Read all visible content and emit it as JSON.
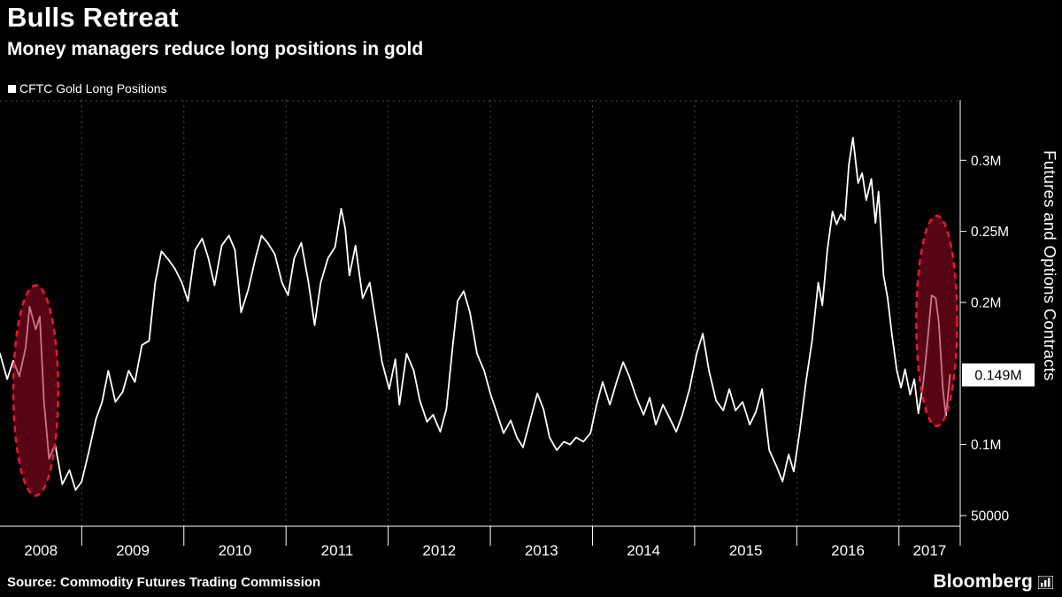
{
  "header": {
    "title": "Bulls Retreat",
    "subtitle": "Money managers reduce long positions in gold"
  },
  "legend": {
    "label": "CFTC Gold Long Positions"
  },
  "footer": {
    "source": "Source: Commodity Futures Trading Commission",
    "brand": "Bloomberg"
  },
  "chart_data": {
    "type": "line",
    "title": "Bulls Retreat",
    "subtitle": "Money managers reduce long positions in gold",
    "legend_position": "top-left",
    "grid": "vertical-dashed",
    "x_axis": {
      "range": [
        2008.2,
        2017.6
      ],
      "gridline_years": [
        2009,
        2010,
        2011,
        2012,
        2013,
        2014,
        2015,
        2016,
        2017
      ],
      "tick_labels": [
        {
          "label": "2008",
          "center": 2008.6
        },
        {
          "label": "2009",
          "center": 2009.5
        },
        {
          "label": "2010",
          "center": 2010.5
        },
        {
          "label": "2011",
          "center": 2011.5
        },
        {
          "label": "2012",
          "center": 2012.5
        },
        {
          "label": "2013",
          "center": 2013.5
        },
        {
          "label": "2014",
          "center": 2014.5
        },
        {
          "label": "2015",
          "center": 2015.5
        },
        {
          "label": "2016",
          "center": 2016.5
        },
        {
          "label": "2017",
          "center": 2017.3
        }
      ]
    },
    "y_axis": {
      "range": [
        0.0425,
        0.3425
      ],
      "side": "right",
      "axis_title": "Futures and Options Contracts",
      "ticks": [
        {
          "value": 0.3,
          "label": "0.3M"
        },
        {
          "value": 0.25,
          "label": "0.25M"
        },
        {
          "value": 0.2,
          "label": "0.2M"
        },
        {
          "value": 0.1,
          "label": "0.1M"
        },
        {
          "value": 0.05,
          "label": "50000"
        }
      ]
    },
    "current_value": {
      "value": 0.149,
      "label": "0.149M"
    },
    "series": [
      {
        "name": "CFTC Gold Long Positions",
        "color": "#ffffff",
        "points": [
          [
            2008.2,
            0.164
          ],
          [
            2008.27,
            0.146
          ],
          [
            2008.33,
            0.159
          ],
          [
            2008.39,
            0.148
          ],
          [
            2008.45,
            0.168
          ],
          [
            2008.49,
            0.197
          ],
          [
            2008.55,
            0.181
          ],
          [
            2008.59,
            0.19
          ],
          [
            2008.63,
            0.131
          ],
          [
            2008.68,
            0.09
          ],
          [
            2008.74,
            0.1
          ],
          [
            2008.81,
            0.072
          ],
          [
            2008.88,
            0.082
          ],
          [
            2008.94,
            0.068
          ],
          [
            2009.0,
            0.074
          ],
          [
            2009.07,
            0.095
          ],
          [
            2009.14,
            0.118
          ],
          [
            2009.2,
            0.13
          ],
          [
            2009.26,
            0.152
          ],
          [
            2009.33,
            0.13
          ],
          [
            2009.4,
            0.137
          ],
          [
            2009.46,
            0.152
          ],
          [
            2009.52,
            0.144
          ],
          [
            2009.59,
            0.17
          ],
          [
            2009.66,
            0.173
          ],
          [
            2009.72,
            0.214
          ],
          [
            2009.78,
            0.236
          ],
          [
            2009.85,
            0.23
          ],
          [
            2009.91,
            0.224
          ],
          [
            2009.98,
            0.214
          ],
          [
            2010.04,
            0.201
          ],
          [
            2010.11,
            0.237
          ],
          [
            2010.18,
            0.245
          ],
          [
            2010.24,
            0.231
          ],
          [
            2010.3,
            0.212
          ],
          [
            2010.37,
            0.24
          ],
          [
            2010.44,
            0.247
          ],
          [
            2010.5,
            0.237
          ],
          [
            2010.56,
            0.193
          ],
          [
            2010.63,
            0.209
          ],
          [
            2010.7,
            0.231
          ],
          [
            2010.76,
            0.247
          ],
          [
            2010.82,
            0.242
          ],
          [
            2010.89,
            0.234
          ],
          [
            2010.96,
            0.214
          ],
          [
            2011.02,
            0.205
          ],
          [
            2011.08,
            0.231
          ],
          [
            2011.15,
            0.242
          ],
          [
            2011.22,
            0.214
          ],
          [
            2011.28,
            0.184
          ],
          [
            2011.34,
            0.214
          ],
          [
            2011.41,
            0.231
          ],
          [
            2011.48,
            0.239
          ],
          [
            2011.54,
            0.266
          ],
          [
            2011.58,
            0.252
          ],
          [
            2011.62,
            0.219
          ],
          [
            2011.68,
            0.24
          ],
          [
            2011.75,
            0.203
          ],
          [
            2011.82,
            0.214
          ],
          [
            2011.88,
            0.186
          ],
          [
            2011.94,
            0.158
          ],
          [
            2012.01,
            0.139
          ],
          [
            2012.07,
            0.16
          ],
          [
            2012.11,
            0.128
          ],
          [
            2012.18,
            0.164
          ],
          [
            2012.25,
            0.152
          ],
          [
            2012.31,
            0.131
          ],
          [
            2012.38,
            0.116
          ],
          [
            2012.44,
            0.121
          ],
          [
            2012.51,
            0.109
          ],
          [
            2012.57,
            0.125
          ],
          [
            2012.63,
            0.168
          ],
          [
            2012.68,
            0.201
          ],
          [
            2012.74,
            0.208
          ],
          [
            2012.8,
            0.193
          ],
          [
            2012.87,
            0.164
          ],
          [
            2012.94,
            0.152
          ],
          [
            2013.0,
            0.136
          ],
          [
            2013.06,
            0.123
          ],
          [
            2013.13,
            0.108
          ],
          [
            2013.2,
            0.117
          ],
          [
            2013.26,
            0.105
          ],
          [
            2013.32,
            0.098
          ],
          [
            2013.39,
            0.117
          ],
          [
            2013.46,
            0.136
          ],
          [
            2013.52,
            0.125
          ],
          [
            2013.58,
            0.105
          ],
          [
            2013.65,
            0.096
          ],
          [
            2013.72,
            0.102
          ],
          [
            2013.78,
            0.1
          ],
          [
            2013.84,
            0.105
          ],
          [
            2013.91,
            0.102
          ],
          [
            2013.98,
            0.108
          ],
          [
            2014.04,
            0.128
          ],
          [
            2014.1,
            0.144
          ],
          [
            2014.17,
            0.128
          ],
          [
            2014.24,
            0.145
          ],
          [
            2014.3,
            0.158
          ],
          [
            2014.36,
            0.148
          ],
          [
            2014.43,
            0.133
          ],
          [
            2014.5,
            0.121
          ],
          [
            2014.56,
            0.133
          ],
          [
            2014.62,
            0.114
          ],
          [
            2014.69,
            0.128
          ],
          [
            2014.76,
            0.118
          ],
          [
            2014.82,
            0.109
          ],
          [
            2014.88,
            0.121
          ],
          [
            2014.95,
            0.139
          ],
          [
            2015.02,
            0.164
          ],
          [
            2015.08,
            0.178
          ],
          [
            2015.14,
            0.152
          ],
          [
            2015.21,
            0.131
          ],
          [
            2015.28,
            0.124
          ],
          [
            2015.34,
            0.139
          ],
          [
            2015.4,
            0.124
          ],
          [
            2015.47,
            0.13
          ],
          [
            2015.54,
            0.114
          ],
          [
            2015.6,
            0.123
          ],
          [
            2015.66,
            0.139
          ],
          [
            2015.73,
            0.096
          ],
          [
            2015.8,
            0.085
          ],
          [
            2015.86,
            0.074
          ],
          [
            2015.92,
            0.093
          ],
          [
            2015.97,
            0.081
          ],
          [
            2016.03,
            0.11
          ],
          [
            2016.09,
            0.144
          ],
          [
            2016.15,
            0.173
          ],
          [
            2016.21,
            0.214
          ],
          [
            2016.25,
            0.198
          ],
          [
            2016.3,
            0.237
          ],
          [
            2016.35,
            0.264
          ],
          [
            2016.39,
            0.255
          ],
          [
            2016.43,
            0.262
          ],
          [
            2016.47,
            0.258
          ],
          [
            2016.51,
            0.297
          ],
          [
            2016.55,
            0.316
          ],
          [
            2016.6,
            0.284
          ],
          [
            2016.64,
            0.291
          ],
          [
            2016.68,
            0.272
          ],
          [
            2016.73,
            0.287
          ],
          [
            2016.77,
            0.256
          ],
          [
            2016.8,
            0.278
          ],
          [
            2016.85,
            0.219
          ],
          [
            2016.89,
            0.203
          ],
          [
            2016.93,
            0.178
          ],
          [
            2016.98,
            0.152
          ],
          [
            2017.02,
            0.14
          ],
          [
            2017.06,
            0.153
          ],
          [
            2017.11,
            0.135
          ],
          [
            2017.15,
            0.146
          ],
          [
            2017.19,
            0.122
          ],
          [
            2017.24,
            0.144
          ],
          [
            2017.28,
            0.173
          ],
          [
            2017.32,
            0.205
          ],
          [
            2017.36,
            0.203
          ],
          [
            2017.39,
            0.186
          ],
          [
            2017.43,
            0.139
          ],
          [
            2017.46,
            0.12
          ],
          [
            2017.5,
            0.149
          ]
        ]
      }
    ],
    "annotations": [
      {
        "type": "ellipse",
        "cx_year": 2008.55,
        "cy_value": 0.138,
        "rx_years": 0.22,
        "ry_value": 0.074,
        "note": "2008 spike and crash highlighted"
      },
      {
        "type": "ellipse",
        "cx_year": 2017.37,
        "cy_value": 0.187,
        "rx_years": 0.2,
        "ry_value": 0.074,
        "note": "2017 retreat highlighted"
      }
    ],
    "colors": {
      "background": "#000000",
      "line": "#ffffff",
      "grid": "#4a4a4a",
      "axis": "#ffffff",
      "annotation_fill": "rgba(158,8,38,0.55)",
      "annotation_stroke": "#e8192e",
      "current_value_bg": "#ffffff",
      "current_value_text": "#000000"
    }
  }
}
